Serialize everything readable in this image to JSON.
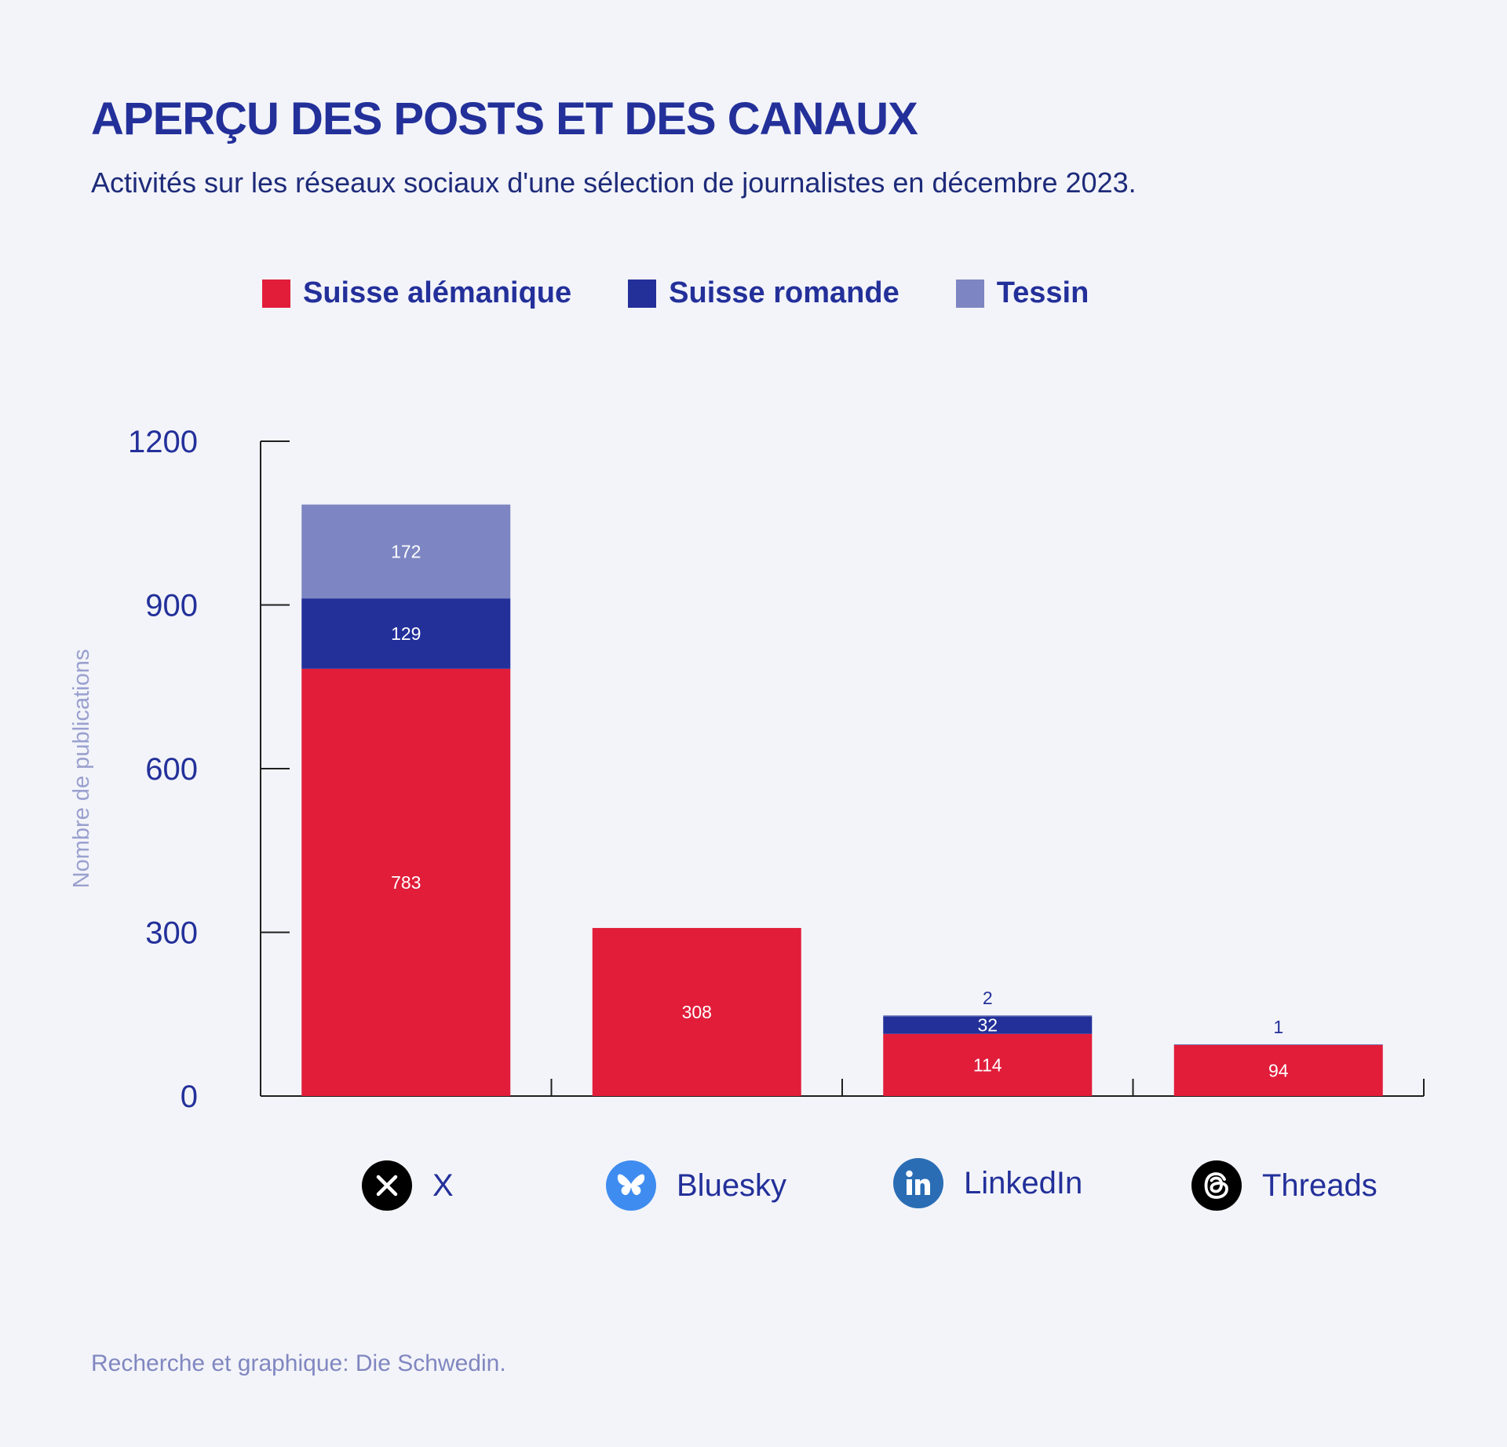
{
  "title": "APERÇU DES POSTS ET DES CANAUX",
  "subtitle": "Activités sur les réseaux sociaux d'une sélection de journalistes en décembre 2023.",
  "source": "Recherche et graphique: Die Schwedin.",
  "colors": {
    "background": "#f3f4f9",
    "suisse_alemanique": "#e11d3a",
    "suisse_romande": "#23309a",
    "tessin": "#7d86c2",
    "axis": "#1f1f1f",
    "tick_label": "#23309a",
    "axis_title": "#9aa0cf"
  },
  "legend": [
    {
      "label": "Suisse alémanique",
      "color": "#e11d3a"
    },
    {
      "label": "Suisse romande",
      "color": "#23309a"
    },
    {
      "label": "Tessin",
      "color": "#7d86c2"
    }
  ],
  "categories": [
    {
      "label": "X",
      "icon": "x-logo-icon"
    },
    {
      "label": "Bluesky",
      "icon": "bluesky-butterfly-icon"
    },
    {
      "label": "LinkedIn",
      "icon": "linkedin-icon"
    },
    {
      "label": "Threads",
      "icon": "threads-icon"
    }
  ],
  "chart_data": {
    "type": "bar",
    "stacked": true,
    "categories": [
      "X",
      "Bluesky",
      "LinkedIn",
      "Threads"
    ],
    "series": [
      {
        "name": "Suisse alémanique",
        "values": [
          783,
          308,
          114,
          94
        ],
        "color": "#e11d3a"
      },
      {
        "name": "Suisse romande",
        "values": [
          129,
          0,
          32,
          0
        ],
        "color": "#23309a"
      },
      {
        "name": "Tessin",
        "values": [
          172,
          0,
          2,
          1
        ],
        "color": "#7d86c2"
      }
    ],
    "ylabel": "Nombre de publications",
    "ylim": [
      0,
      1200
    ],
    "yticks": [
      0,
      300,
      600,
      900,
      1200
    ],
    "grid": false,
    "legend_position": "top"
  }
}
